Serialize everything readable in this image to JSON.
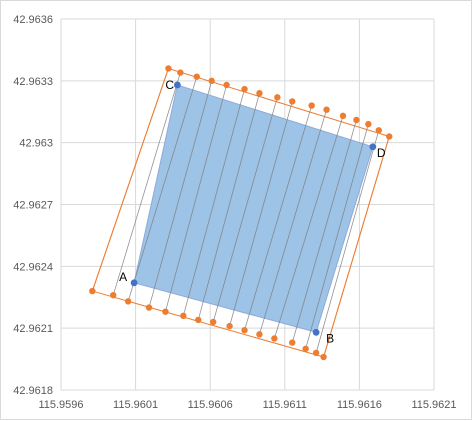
{
  "chart_data": {
    "type": "scatter",
    "title": "",
    "xlabel": "",
    "ylabel": "",
    "xlim": [
      115.9596,
      115.9621
    ],
    "ylim": [
      42.9618,
      42.9636
    ],
    "x_ticks": [
      115.9596,
      115.9601,
      115.9606,
      115.9611,
      115.9616,
      115.9621
    ],
    "x_tick_labels": [
      "115.9596",
      "115.9601",
      "115.9606",
      "115.9611",
      "115.9616",
      "115.9621"
    ],
    "y_ticks": [
      42.9618,
      42.9621,
      42.9624,
      42.9627,
      42.963,
      42.9633,
      42.9636
    ],
    "y_tick_labels": [
      "42.9618",
      "42.9621",
      "42.9624",
      "42.9627",
      "42.963",
      "42.9633",
      "42.9636"
    ],
    "grid": true,
    "legend": "none",
    "colors": {
      "polygon_fill": "#9dc3e6",
      "polygon_stroke": "#8faadc",
      "outline": "#ed7d31",
      "flight_line": "#7f7f7f",
      "corner_point": "#4472c4",
      "waypoint": "#ed7d31"
    },
    "corners": [
      {
        "label": "A",
        "x": 115.96009,
        "y": 42.96232
      },
      {
        "label": "B",
        "x": 115.96131,
        "y": 42.96208
      },
      {
        "label": "D",
        "x": 115.96169,
        "y": 42.96298
      },
      {
        "label": "C",
        "x": 115.96038,
        "y": 42.96328
      }
    ],
    "waypoints_bottom": [
      {
        "x": 115.95981,
        "y": 42.96228
      },
      {
        "x": 115.95995,
        "y": 42.96226
      },
      {
        "x": 115.96005,
        "y": 42.96223
      },
      {
        "x": 115.96019,
        "y": 42.9622
      },
      {
        "x": 115.9603,
        "y": 42.96218
      },
      {
        "x": 115.96042,
        "y": 42.96216
      },
      {
        "x": 115.96052,
        "y": 42.96214
      },
      {
        "x": 115.96062,
        "y": 42.96213
      },
      {
        "x": 115.96073,
        "y": 42.96211
      },
      {
        "x": 115.96083,
        "y": 42.96209
      },
      {
        "x": 115.96093,
        "y": 42.96207
      },
      {
        "x": 115.96103,
        "y": 42.96205
      },
      {
        "x": 115.96115,
        "y": 42.96203
      },
      {
        "x": 115.96124,
        "y": 42.962
      },
      {
        "x": 115.96131,
        "y": 42.96198
      },
      {
        "x": 115.96136,
        "y": 42.96196
      }
    ],
    "waypoints_top": [
      {
        "x": 115.96032,
        "y": 42.96336
      },
      {
        "x": 115.9604,
        "y": 42.96334
      },
      {
        "x": 115.96051,
        "y": 42.96332
      },
      {
        "x": 115.96061,
        "y": 42.9633
      },
      {
        "x": 115.96071,
        "y": 42.96328
      },
      {
        "x": 115.96083,
        "y": 42.96326
      },
      {
        "x": 115.96093,
        "y": 42.96324
      },
      {
        "x": 115.96105,
        "y": 42.96322
      },
      {
        "x": 115.96115,
        "y": 42.9632
      },
      {
        "x": 115.96128,
        "y": 42.96318
      },
      {
        "x": 115.96138,
        "y": 42.96316
      },
      {
        "x": 115.96149,
        "y": 42.96313
      },
      {
        "x": 115.96158,
        "y": 42.96311
      },
      {
        "x": 115.96166,
        "y": 42.96309
      },
      {
        "x": 115.96173,
        "y": 42.96306
      },
      {
        "x": 115.9618,
        "y": 42.96303
      }
    ]
  }
}
